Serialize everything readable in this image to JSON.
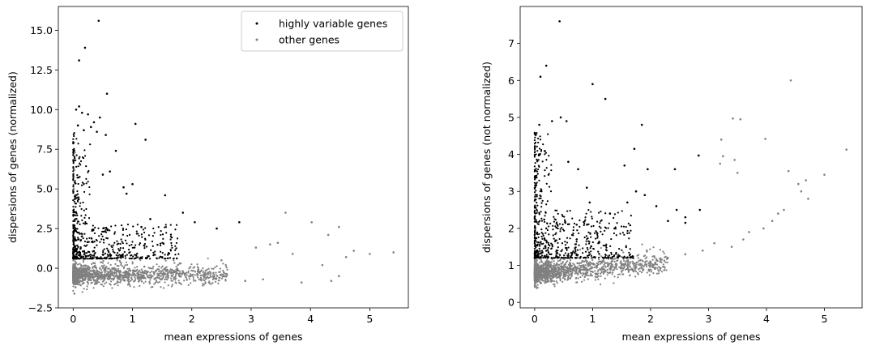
{
  "chart_data": [
    {
      "type": "scatter",
      "xlabel": "mean expressions of genes",
      "ylabel": "dispersions of genes (normalized)",
      "xlim": [
        -0.25,
        5.65
      ],
      "ylim": [
        -2.5,
        16.5
      ],
      "xticks": [
        "0",
        "1",
        "2",
        "3",
        "4",
        "5"
      ],
      "xtick_values": [
        0,
        1,
        2,
        3,
        4,
        5
      ],
      "yticks": [
        "−2.5",
        "0.0",
        "2.5",
        "5.0",
        "7.5",
        "10.0",
        "12.5",
        "15.0"
      ],
      "ytick_values": [
        -2.5,
        0,
        2.5,
        5,
        7.5,
        10,
        12.5,
        15
      ],
      "legend": {
        "placement": "top-right",
        "entries": [
          {
            "label": "highly variable genes",
            "color": "#000000"
          },
          {
            "label": "other genes",
            "color": "#808080"
          }
        ]
      },
      "series": [
        {
          "name": "highly variable genes",
          "color": "#000000",
          "points": [
            [
              0.43,
              15.6
            ],
            [
              0.2,
              13.9
            ],
            [
              0.1,
              13.1
            ],
            [
              0.57,
              11.0
            ],
            [
              1.05,
              9.1
            ],
            [
              1.22,
              8.1
            ],
            [
              0.05,
              10.0
            ],
            [
              0.1,
              10.2
            ],
            [
              0.15,
              9.8
            ],
            [
              0.25,
              9.7
            ],
            [
              0.35,
              9.2
            ],
            [
              0.45,
              9.5
            ],
            [
              0.08,
              9.0
            ],
            [
              0.18,
              8.7
            ],
            [
              0.3,
              8.9
            ],
            [
              0.4,
              8.6
            ],
            [
              0.55,
              8.4
            ],
            [
              0.72,
              7.4
            ],
            [
              0.62,
              6.1
            ],
            [
              0.5,
              5.9
            ],
            [
              0.85,
              5.1
            ],
            [
              0.9,
              4.7
            ],
            [
              1.0,
              5.3
            ],
            [
              1.55,
              4.6
            ],
            [
              1.85,
              3.5
            ],
            [
              2.05,
              2.9
            ],
            [
              2.42,
              2.5
            ],
            [
              2.8,
              2.9
            ],
            [
              1.15,
              2.6
            ],
            [
              1.3,
              3.1
            ]
          ]
        },
        {
          "name": "other genes",
          "color": "#808080",
          "points": [
            [
              3.58,
              3.5
            ],
            [
              4.02,
              2.9
            ],
            [
              4.3,
              2.1
            ],
            [
              4.48,
              2.6
            ],
            [
              3.08,
              1.3
            ],
            [
              3.32,
              1.5
            ],
            [
              3.45,
              1.6
            ],
            [
              3.7,
              0.9
            ],
            [
              4.2,
              0.2
            ],
            [
              4.6,
              0.7
            ],
            [
              4.73,
              1.1
            ],
            [
              5.0,
              0.9
            ],
            [
              5.4,
              1.0
            ],
            [
              4.35,
              -0.8
            ],
            [
              4.48,
              -0.5
            ],
            [
              3.85,
              -0.9
            ],
            [
              3.2,
              -0.7
            ],
            [
              2.9,
              -0.8
            ],
            [
              0.02,
              6.2
            ],
            [
              0.03,
              7.3
            ],
            [
              0.01,
              5.0
            ],
            [
              0.04,
              -1.2
            ],
            [
              0.05,
              -1.0
            ],
            [
              0.02,
              -1.6
            ],
            [
              2.1,
              -0.4
            ],
            [
              2.5,
              0.5
            ],
            [
              1.8,
              0.3
            ],
            [
              1.6,
              -0.6
            ],
            [
              1.2,
              0.1
            ],
            [
              0.9,
              -0.2
            ]
          ]
        }
      ],
      "background_cloud_note": ""
    },
    {
      "type": "scatter",
      "xlabel": "mean expressions of genes",
      "ylabel": "dispersions of genes (not normalized)",
      "xlim": [
        -0.25,
        5.65
      ],
      "ylim": [
        -0.15,
        8.0
      ],
      "xticks": [
        "0",
        "1",
        "2",
        "3",
        "4",
        "5"
      ],
      "xtick_values": [
        0,
        1,
        2,
        3,
        4,
        5
      ],
      "yticks": [
        "0",
        "1",
        "2",
        "3",
        "4",
        "5",
        "6",
        "7"
      ],
      "ytick_values": [
        0,
        1,
        2,
        3,
        4,
        5,
        6,
        7
      ],
      "series": [
        {
          "name": "highly variable genes",
          "color": "#000000",
          "points": [
            [
              0.43,
              7.6
            ],
            [
              0.2,
              6.4
            ],
            [
              0.1,
              6.1
            ],
            [
              1.0,
              5.9
            ],
            [
              1.22,
              5.5
            ],
            [
              0.45,
              5.0
            ],
            [
              0.3,
              4.9
            ],
            [
              0.55,
              4.9
            ],
            [
              0.08,
              4.8
            ],
            [
              1.85,
              4.8
            ],
            [
              1.72,
              4.15
            ],
            [
              0.58,
              3.8
            ],
            [
              1.55,
              3.7
            ],
            [
              1.95,
              3.6
            ],
            [
              2.42,
              3.6
            ],
            [
              2.83,
              3.97
            ],
            [
              0.75,
              3.6
            ],
            [
              0.9,
              3.1
            ],
            [
              1.6,
              2.7
            ],
            [
              2.1,
              2.6
            ],
            [
              2.3,
              2.2
            ],
            [
              2.6,
              2.3
            ],
            [
              2.85,
              2.5
            ],
            [
              1.9,
              2.9
            ],
            [
              1.3,
              2.4
            ],
            [
              0.95,
              2.7
            ],
            [
              1.1,
              1.6
            ],
            [
              2.6,
              2.15
            ],
            [
              2.45,
              2.5
            ],
            [
              1.75,
              3.0
            ]
          ]
        },
        {
          "name": "other genes",
          "color": "#808080",
          "points": [
            [
              4.42,
              6.0
            ],
            [
              3.42,
              4.97
            ],
            [
              3.55,
              4.95
            ],
            [
              3.98,
              4.42
            ],
            [
              5.38,
              4.13
            ],
            [
              3.22,
              4.4
            ],
            [
              3.25,
              3.95
            ],
            [
              3.45,
              3.85
            ],
            [
              3.5,
              3.5
            ],
            [
              4.38,
              3.55
            ],
            [
              3.2,
              3.75
            ],
            [
              5.0,
              3.45
            ],
            [
              4.55,
              3.2
            ],
            [
              4.68,
              3.3
            ],
            [
              4.6,
              3.0
            ],
            [
              4.72,
              2.8
            ],
            [
              4.3,
              2.5
            ],
            [
              4.2,
              2.4
            ],
            [
              4.1,
              2.2
            ],
            [
              3.95,
              2.0
            ],
            [
              3.7,
              1.9
            ],
            [
              3.6,
              1.7
            ],
            [
              3.4,
              1.5
            ],
            [
              3.1,
              1.6
            ],
            [
              2.9,
              1.4
            ],
            [
              2.6,
              1.3
            ],
            [
              2.3,
              1.2
            ],
            [
              2.0,
              1.1
            ],
            [
              1.7,
              1.05
            ],
            [
              1.4,
              0.95
            ]
          ]
        }
      ]
    }
  ]
}
